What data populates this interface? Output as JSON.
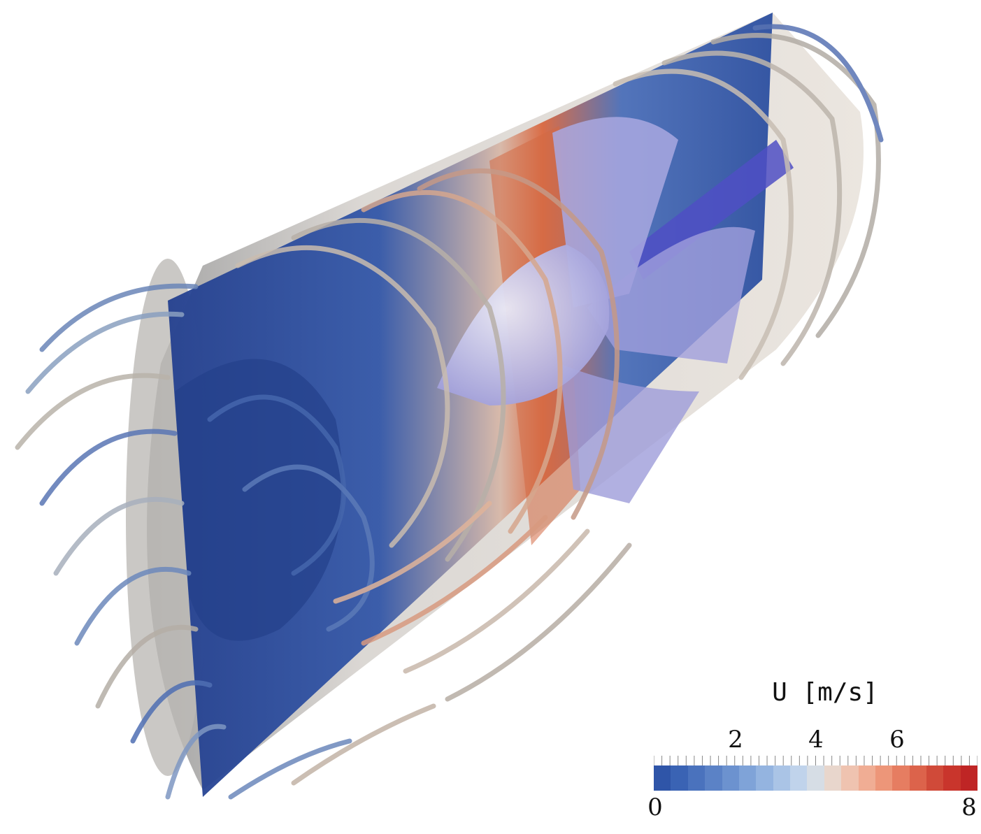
{
  "scene": {
    "name": "cfd-flow-visualization"
  },
  "colorbar": {
    "title": "U [m/s]",
    "min_label": "0",
    "max_label": "8",
    "tick_2": "2",
    "tick_4": "4",
    "tick_6": "6",
    "colors": [
      "#2f55a8",
      "#3a63b4",
      "#4a72bd",
      "#5b82c6",
      "#6c92cf",
      "#7fa3d8",
      "#94b4e0",
      "#aac4e6",
      "#c0d3eb",
      "#d6dde5",
      "#e8d6cc",
      "#efc3b0",
      "#f0ad94",
      "#ed9679",
      "#e67d61",
      "#dc634b",
      "#d04a39",
      "#c9352c",
      "#bf2525"
    ]
  }
}
